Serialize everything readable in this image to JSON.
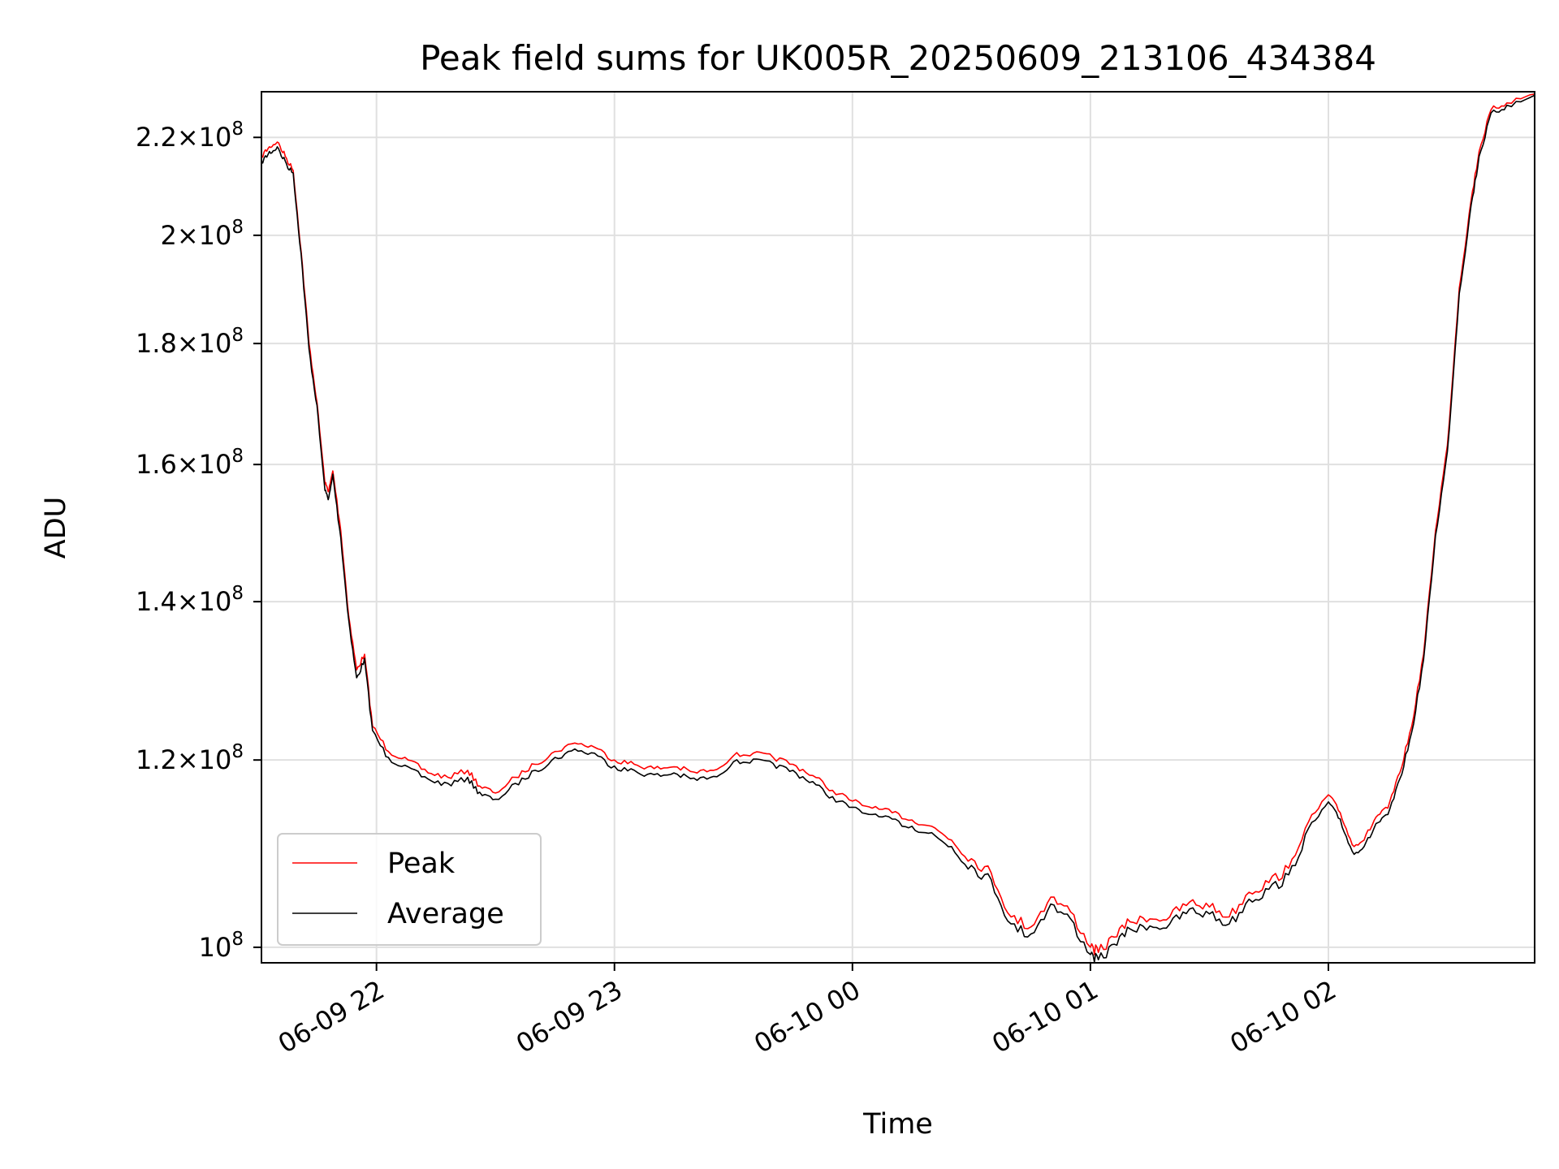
{
  "chart_data": {
    "type": "line",
    "title": "Peak field sums for UK005R_20250609_213106_434384",
    "xlabel": "Time",
    "ylabel": "ADU",
    "x_axis": {
      "kind": "time",
      "range": [
        "2025-06-09T21:31:00",
        "2025-06-10T02:52:00"
      ],
      "ticks": [
        {
          "value": "2025-06-09T22:00:00",
          "label": "06-09 22"
        },
        {
          "value": "2025-06-09T23:00:00",
          "label": "06-09 23"
        },
        {
          "value": "2025-06-10T00:00:00",
          "label": "06-10 00"
        },
        {
          "value": "2025-06-10T01:00:00",
          "label": "06-10 01"
        },
        {
          "value": "2025-06-10T02:00:00",
          "label": "06-10 02"
        }
      ],
      "tick_label_rotation": "30 degrees"
    },
    "y_axis": {
      "scale": "log",
      "range": [
        98500000,
        230000000
      ],
      "ticks": [
        {
          "value": 100000000,
          "mantissa": "",
          "exponent": "8",
          "base": "10"
        },
        {
          "value": 120000000,
          "mantissa": "1.2",
          "exponent": "8",
          "base": "10"
        },
        {
          "value": 140000000,
          "mantissa": "1.4",
          "exponent": "8",
          "base": "10"
        },
        {
          "value": 160000000,
          "mantissa": "1.6",
          "exponent": "8",
          "base": "10"
        },
        {
          "value": 180000000,
          "mantissa": "1.8",
          "exponent": "8",
          "base": "10"
        },
        {
          "value": 200000000,
          "mantissa": "2",
          "exponent": "8",
          "base": "10"
        },
        {
          "value": 220000000,
          "mantissa": "2.2",
          "exponent": "8",
          "base": "10"
        }
      ]
    },
    "grid": true,
    "legend": {
      "placement": "lower-left"
    },
    "series": [
      {
        "name": "Peak",
        "color": "#ff0000",
        "points": [
          [
            "2025-06-09T21:31:00",
            216000000
          ],
          [
            "2025-06-09T21:33:00",
            218000000
          ],
          [
            "2025-06-09T21:35:00",
            219000000
          ],
          [
            "2025-06-09T21:37:00",
            216000000
          ],
          [
            "2025-06-09T21:39:00",
            213000000
          ],
          [
            "2025-06-09T21:41:00",
            197000000
          ],
          [
            "2025-06-09T21:43:00",
            180000000
          ],
          [
            "2025-06-09T21:45:00",
            170000000
          ],
          [
            "2025-06-09T21:47:00",
            157000000
          ],
          [
            "2025-06-09T21:48:00",
            156000000
          ],
          [
            "2025-06-09T21:49:00",
            159000000
          ],
          [
            "2025-06-09T21:51:00",
            150000000
          ],
          [
            "2025-06-09T21:53:00",
            138000000
          ],
          [
            "2025-06-09T21:55:00",
            131000000
          ],
          [
            "2025-06-09T21:57:00",
            133000000
          ],
          [
            "2025-06-09T21:59:00",
            124000000
          ],
          [
            "2025-06-09T22:03:00",
            121000000
          ],
          [
            "2025-06-09T22:08:00",
            120000000
          ],
          [
            "2025-06-09T22:13:00",
            118500000
          ],
          [
            "2025-06-09T22:18:00",
            118000000
          ],
          [
            "2025-06-09T22:23:00",
            118800000
          ],
          [
            "2025-06-09T22:26:00",
            117000000
          ],
          [
            "2025-06-09T22:30:00",
            116200000
          ],
          [
            "2025-06-09T22:35:00",
            118000000
          ],
          [
            "2025-06-09T22:40:00",
            119500000
          ],
          [
            "2025-06-09T22:45:00",
            121000000
          ],
          [
            "2025-06-09T22:50:00",
            122000000
          ],
          [
            "2025-06-09T22:55:00",
            121500000
          ],
          [
            "2025-06-09T23:00:00",
            120000000
          ],
          [
            "2025-06-09T23:05:00",
            119500000
          ],
          [
            "2025-06-09T23:10:00",
            119000000
          ],
          [
            "2025-06-09T23:15:00",
            119200000
          ],
          [
            "2025-06-09T23:20:00",
            118600000
          ],
          [
            "2025-06-09T23:25:00",
            118800000
          ],
          [
            "2025-06-09T23:30:00",
            120500000
          ],
          [
            "2025-06-09T23:35:00",
            120800000
          ],
          [
            "2025-06-09T23:40:00",
            120300000
          ],
          [
            "2025-06-09T23:45:00",
            119500000
          ],
          [
            "2025-06-09T23:50:00",
            118200000
          ],
          [
            "2025-06-09T23:55:00",
            116500000
          ],
          [
            "2025-06-10T00:00:00",
            115300000
          ],
          [
            "2025-06-10T00:05:00",
            114500000
          ],
          [
            "2025-06-10T00:10:00",
            114000000
          ],
          [
            "2025-06-10T00:15:00",
            113200000
          ],
          [
            "2025-06-10T00:20:00",
            112500000
          ],
          [
            "2025-06-10T00:25:00",
            111000000
          ],
          [
            "2025-06-10T00:30:00",
            109000000
          ],
          [
            "2025-06-10T00:35:00",
            107500000
          ],
          [
            "2025-06-10T00:40:00",
            103000000
          ],
          [
            "2025-06-10T00:45:00",
            102000000
          ],
          [
            "2025-06-10T00:50:00",
            105000000
          ],
          [
            "2025-06-10T00:55:00",
            103500000
          ],
          [
            "2025-06-10T01:00:00",
            100000000
          ],
          [
            "2025-06-10T01:02:00",
            99500000
          ],
          [
            "2025-06-10T01:06:00",
            101000000
          ],
          [
            "2025-06-10T01:10:00",
            102500000
          ],
          [
            "2025-06-10T01:15:00",
            102800000
          ],
          [
            "2025-06-10T01:20:00",
            103000000
          ],
          [
            "2025-06-10T01:25:00",
            104500000
          ],
          [
            "2025-06-10T01:30:00",
            104000000
          ],
          [
            "2025-06-10T01:35:00",
            103000000
          ],
          [
            "2025-06-10T01:40:00",
            105500000
          ],
          [
            "2025-06-10T01:45:00",
            106500000
          ],
          [
            "2025-06-10T01:50:00",
            108000000
          ],
          [
            "2025-06-10T01:55:00",
            113000000
          ],
          [
            "2025-06-10T02:00:00",
            116000000
          ],
          [
            "2025-06-10T02:03:00",
            114000000
          ],
          [
            "2025-06-10T02:06:00",
            110500000
          ],
          [
            "2025-06-10T02:09:00",
            111000000
          ],
          [
            "2025-06-10T02:12:00",
            113500000
          ],
          [
            "2025-06-10T02:15:00",
            114500000
          ],
          [
            "2025-06-10T02:18:00",
            118500000
          ],
          [
            "2025-06-10T02:21:00",
            124000000
          ],
          [
            "2025-06-10T02:24:00",
            133000000
          ],
          [
            "2025-06-10T02:27:00",
            150000000
          ],
          [
            "2025-06-10T02:30:00",
            163000000
          ],
          [
            "2025-06-10T02:33:00",
            190000000
          ],
          [
            "2025-06-10T02:36:00",
            207000000
          ],
          [
            "2025-06-10T02:38:00",
            217000000
          ],
          [
            "2025-06-10T02:41:00",
            226000000
          ],
          [
            "2025-06-10T02:45:00",
            227500000
          ],
          [
            "2025-06-10T02:52:00",
            229500000
          ]
        ]
      },
      {
        "name": "Average",
        "color": "#000000",
        "points": [
          [
            "2025-06-09T21:31:00",
            215000000
          ],
          [
            "2025-06-09T21:33:00",
            217000000
          ],
          [
            "2025-06-09T21:35:00",
            218000000
          ],
          [
            "2025-06-09T21:37:00",
            215000000
          ],
          [
            "2025-06-09T21:39:00",
            212500000
          ],
          [
            "2025-06-09T21:41:00",
            196500000
          ],
          [
            "2025-06-09T21:43:00",
            179000000
          ],
          [
            "2025-06-09T21:45:00",
            169500000
          ],
          [
            "2025-06-09T21:47:00",
            156000000
          ],
          [
            "2025-06-09T21:48:00",
            155000000
          ],
          [
            "2025-06-09T21:49:00",
            158500000
          ],
          [
            "2025-06-09T21:51:00",
            149000000
          ],
          [
            "2025-06-09T21:53:00",
            137500000
          ],
          [
            "2025-06-09T21:55:00",
            130000000
          ],
          [
            "2025-06-09T21:57:00",
            132500000
          ],
          [
            "2025-06-09T21:59:00",
            123500000
          ],
          [
            "2025-06-09T22:03:00",
            120300000
          ],
          [
            "2025-06-09T22:08:00",
            119200000
          ],
          [
            "2025-06-09T22:13:00",
            117800000
          ],
          [
            "2025-06-09T22:18:00",
            117300000
          ],
          [
            "2025-06-09T22:23:00",
            118000000
          ],
          [
            "2025-06-09T22:26:00",
            116300000
          ],
          [
            "2025-06-09T22:30:00",
            115500000
          ],
          [
            "2025-06-09T22:35:00",
            117300000
          ],
          [
            "2025-06-09T22:40:00",
            118800000
          ],
          [
            "2025-06-09T22:45:00",
            120300000
          ],
          [
            "2025-06-09T22:50:00",
            121300000
          ],
          [
            "2025-06-09T22:55:00",
            120800000
          ],
          [
            "2025-06-09T23:00:00",
            119300000
          ],
          [
            "2025-06-09T23:05:00",
            118800000
          ],
          [
            "2025-06-09T23:10:00",
            118300000
          ],
          [
            "2025-06-09T23:15:00",
            118500000
          ],
          [
            "2025-06-09T23:20:00",
            117900000
          ],
          [
            "2025-06-09T23:25:00",
            118100000
          ],
          [
            "2025-06-09T23:30:00",
            119800000
          ],
          [
            "2025-06-09T23:35:00",
            120100000
          ],
          [
            "2025-06-09T23:40:00",
            119600000
          ],
          [
            "2025-06-09T23:45:00",
            118800000
          ],
          [
            "2025-06-09T23:50:00",
            117500000
          ],
          [
            "2025-06-09T23:55:00",
            115800000
          ],
          [
            "2025-06-10T00:00:00",
            114600000
          ],
          [
            "2025-06-10T00:05:00",
            113800000
          ],
          [
            "2025-06-10T00:10:00",
            113300000
          ],
          [
            "2025-06-10T00:15:00",
            112500000
          ],
          [
            "2025-06-10T00:20:00",
            111800000
          ],
          [
            "2025-06-10T00:25:00",
            110300000
          ],
          [
            "2025-06-10T00:30:00",
            108300000
          ],
          [
            "2025-06-10T00:35:00",
            106800000
          ],
          [
            "2025-06-10T00:40:00",
            102300000
          ],
          [
            "2025-06-10T00:45:00",
            101300000
          ],
          [
            "2025-06-10T00:50:00",
            104300000
          ],
          [
            "2025-06-10T00:55:00",
            102800000
          ],
          [
            "2025-06-10T01:00:00",
            99300000
          ],
          [
            "2025-06-10T01:02:00",
            98800000
          ],
          [
            "2025-06-10T01:06:00",
            100300000
          ],
          [
            "2025-06-10T01:10:00",
            101800000
          ],
          [
            "2025-06-10T01:15:00",
            102100000
          ],
          [
            "2025-06-10T01:20:00",
            102300000
          ],
          [
            "2025-06-10T01:25:00",
            103800000
          ],
          [
            "2025-06-10T01:30:00",
            103300000
          ],
          [
            "2025-06-10T01:35:00",
            102300000
          ],
          [
            "2025-06-10T01:40:00",
            104800000
          ],
          [
            "2025-06-10T01:45:00",
            105800000
          ],
          [
            "2025-06-10T01:50:00",
            107300000
          ],
          [
            "2025-06-10T01:55:00",
            112300000
          ],
          [
            "2025-06-10T02:00:00",
            115200000
          ],
          [
            "2025-06-10T02:03:00",
            113300000
          ],
          [
            "2025-06-10T02:06:00",
            109800000
          ],
          [
            "2025-06-10T02:09:00",
            110300000
          ],
          [
            "2025-06-10T02:12:00",
            112800000
          ],
          [
            "2025-06-10T02:15:00",
            113800000
          ],
          [
            "2025-06-10T02:18:00",
            117800000
          ],
          [
            "2025-06-10T02:21:00",
            123300000
          ],
          [
            "2025-06-10T02:24:00",
            132300000
          ],
          [
            "2025-06-10T02:27:00",
            149300000
          ],
          [
            "2025-06-10T02:30:00",
            162000000
          ],
          [
            "2025-06-10T02:33:00",
            189000000
          ],
          [
            "2025-06-10T02:36:00",
            206000000
          ],
          [
            "2025-06-10T02:38:00",
            216000000
          ],
          [
            "2025-06-10T02:41:00",
            225300000
          ],
          [
            "2025-06-10T02:45:00",
            227000000
          ],
          [
            "2025-06-10T02:52:00",
            229200000
          ]
        ]
      }
    ]
  }
}
